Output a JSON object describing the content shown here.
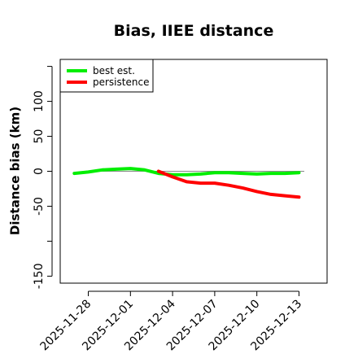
{
  "chart_data": {
    "type": "line",
    "title": "Bias, IIEE distance",
    "xlabel": "",
    "ylabel": "Distance bias (km)",
    "ylim": [
      -160,
      160
    ],
    "xlim": [
      "2025-11-26",
      "2025-12-15"
    ],
    "grid": false,
    "legend_position": "top-left",
    "x_ticks": [
      "2025-11-28",
      "2025-12-01",
      "2025-12-04",
      "2025-12-07",
      "2025-12-10",
      "2025-12-13"
    ],
    "y_ticks": [
      -150,
      -50,
      0,
      50,
      100
    ],
    "y_ticks_unlabeled": [
      -100,
      150
    ],
    "reference_lines": [
      {
        "y": 0,
        "color": "#888888"
      }
    ],
    "series": [
      {
        "name": "best est.",
        "color": "#00ee00",
        "x": [
          "2025-11-27",
          "2025-11-28",
          "2025-11-29",
          "2025-11-30",
          "2025-12-01",
          "2025-12-02",
          "2025-12-03",
          "2025-12-04",
          "2025-12-05",
          "2025-12-06",
          "2025-12-07",
          "2025-12-08",
          "2025-12-09",
          "2025-12-10",
          "2025-12-11",
          "2025-12-12",
          "2025-12-13"
        ],
        "values": [
          -3,
          -1,
          2,
          3,
          4,
          2,
          -3,
          -5,
          -5,
          -4,
          -2,
          -2,
          -3,
          -4,
          -3,
          -3,
          -2
        ]
      },
      {
        "name": "persistence",
        "color": "#ff0000",
        "x": [
          "2025-12-03",
          "2025-12-04",
          "2025-12-05",
          "2025-12-06",
          "2025-12-07",
          "2025-12-08",
          "2025-12-09",
          "2025-12-10",
          "2025-12-11",
          "2025-12-12",
          "2025-12-13"
        ],
        "values": [
          0,
          -8,
          -15,
          -17,
          -17,
          -20,
          -24,
          -29,
          -33,
          -35,
          -37
        ]
      }
    ]
  }
}
